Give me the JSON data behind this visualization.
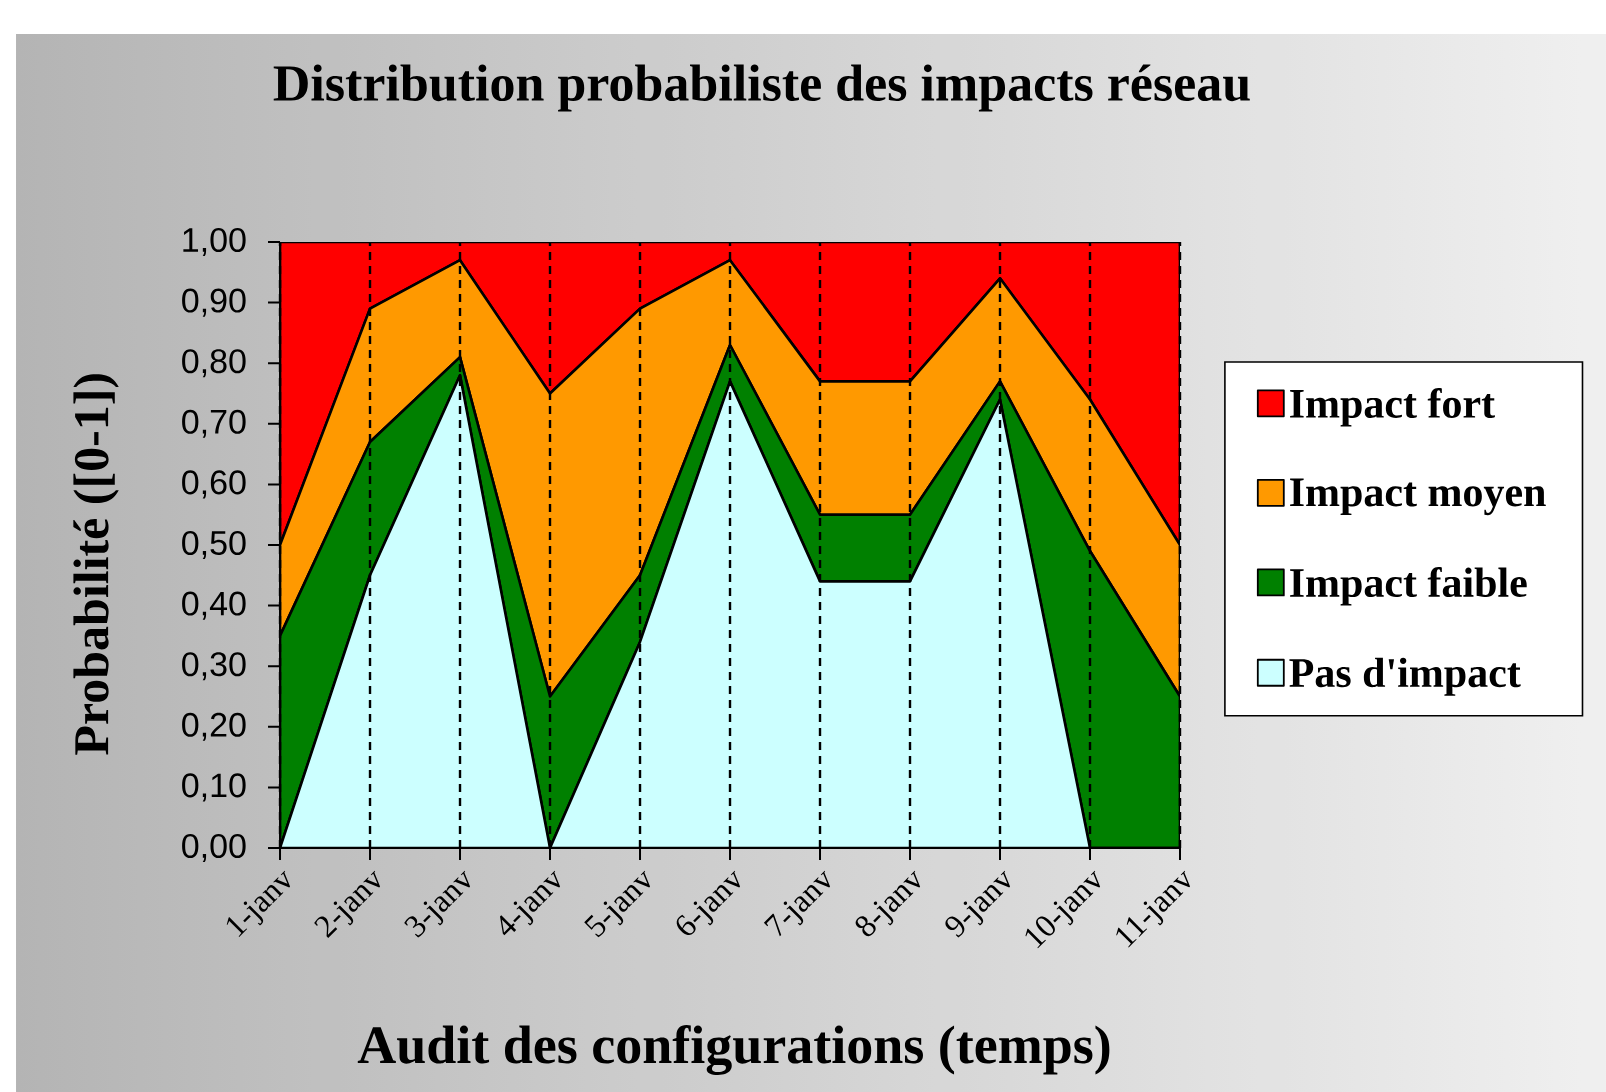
{
  "chart_data": {
    "type": "area",
    "title": "Distribution probabiliste des impacts réseau",
    "xlabel": "Audit des configurations (temps)",
    "ylabel": "Probabilité ([0-1])",
    "categories": [
      "1-janv",
      "2-janv",
      "3-janv",
      "4-janv",
      "5-janv",
      "6-janv",
      "7-janv",
      "8-janv",
      "9-janv",
      "10-janv",
      "11-janv"
    ],
    "series": [
      {
        "name": "Pas d'impact",
        "color": "#ccffff",
        "values": [
          0,
          0.45,
          0.78,
          0,
          0.34,
          0.77,
          0.44,
          0.44,
          0.74,
          0,
          0
        ]
      },
      {
        "name": "Impact faible",
        "color": "#008000",
        "values": [
          0.35,
          0.22,
          0.03,
          0.25,
          0.11,
          0.06,
          0.11,
          0.11,
          0.03,
          0.49,
          0.25
        ]
      },
      {
        "name": "Impact moyen",
        "color": "#ff9900",
        "values": [
          0.15,
          0.22,
          0.16,
          0.5,
          0.44,
          0.14,
          0.22,
          0.22,
          0.17,
          0.25,
          0.25
        ]
      },
      {
        "name": "Impact fort",
        "color": "#ff0000",
        "values": [
          0.5,
          0.11,
          0.03,
          0.25,
          0.11,
          0.03,
          0.23,
          0.23,
          0.06,
          0.26,
          0.5
        ]
      }
    ],
    "stacked": true,
    "ylim": [
      0,
      1
    ],
    "yticks": [
      {
        "value": 0,
        "label": "0,00"
      },
      {
        "value": 0.1,
        "label": "0,10"
      },
      {
        "value": 0.2,
        "label": "0,20"
      },
      {
        "value": 0.3,
        "label": "0,30"
      },
      {
        "value": 0.4,
        "label": "0,40"
      },
      {
        "value": 0.5,
        "label": "0,50"
      },
      {
        "value": 0.6,
        "label": "0,60"
      },
      {
        "value": 0.7,
        "label": "0,70"
      },
      {
        "value": 0.8,
        "label": "0,80"
      },
      {
        "value": 0.9,
        "label": "0,90"
      },
      {
        "value": 1,
        "label": "1,00"
      }
    ],
    "grid": "x",
    "legend": "right"
  }
}
